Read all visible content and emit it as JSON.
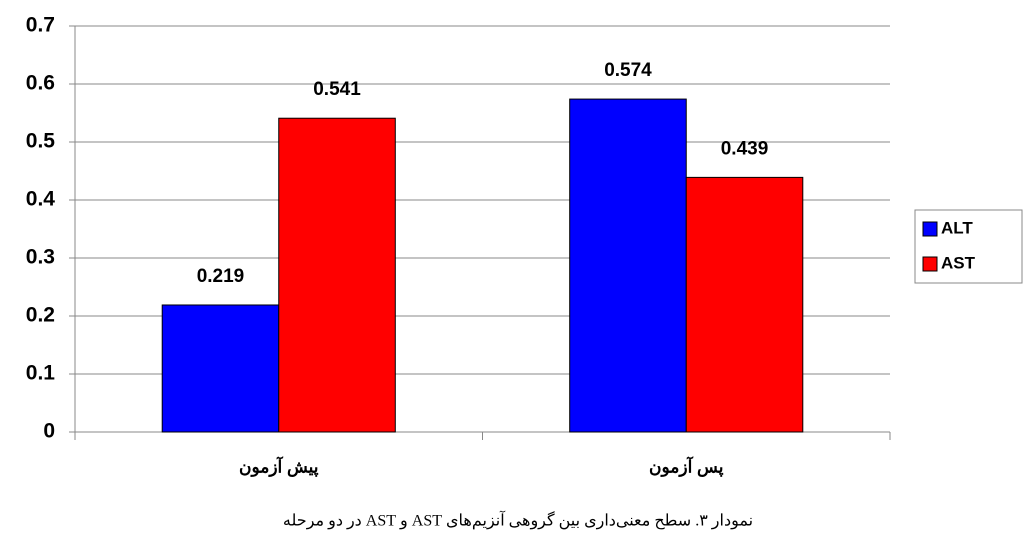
{
  "chart_data": {
    "type": "bar",
    "caption": "نمودار ۳. سطح معنی‌داری بین گروهی آنزیم‌های AST و AST در دو مرحله",
    "categories": [
      "پیش آزمون",
      "پس آزمون"
    ],
    "series": [
      {
        "name": "ALT",
        "color": "#0000ff",
        "values": [
          0.219,
          0.574
        ]
      },
      {
        "name": "AST",
        "color": "#ff0000",
        "values": [
          0.541,
          0.439
        ]
      }
    ],
    "ylim": [
      0,
      0.7
    ],
    "yticks": [
      0,
      0.1,
      0.2,
      0.3,
      0.4,
      0.5,
      0.6,
      0.7
    ],
    "grid": true,
    "legend": "right"
  }
}
